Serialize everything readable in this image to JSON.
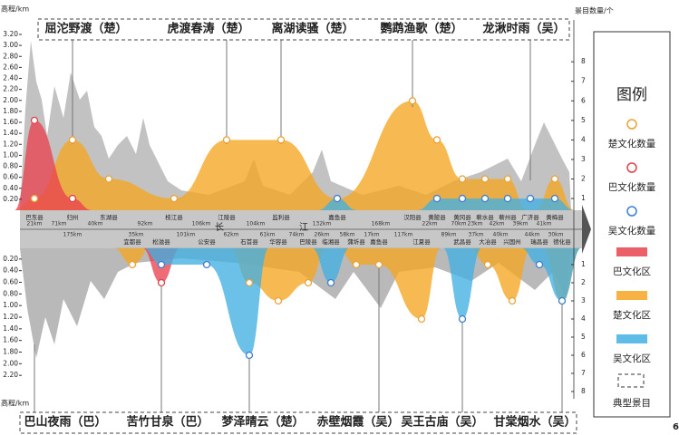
{
  "chart_data": {
    "type": "area",
    "y_label": "高程/km",
    "y2_label": "景目数量/个",
    "river_name": [
      "长",
      "江"
    ],
    "upper": {
      "ylim": [
        0,
        3.2
      ],
      "yticks": [
        {
          "value": 0.2,
          "label": "0.20"
        },
        {
          "value": 0.4,
          "label": "0.40"
        },
        {
          "value": 0.6,
          "label": "0.60"
        },
        {
          "value": 0.8,
          "label": "0.80"
        },
        {
          "value": 1.0,
          "label": "1.00"
        },
        {
          "value": 1.2,
          "label": "1.20"
        },
        {
          "value": 1.4,
          "label": "1.40"
        },
        {
          "value": 1.6,
          "label": "1.60"
        },
        {
          "value": 1.8,
          "label": "1.80"
        },
        {
          "value": 2.0,
          "label": "2.00"
        },
        {
          "value": 2.2,
          "label": "2.20"
        },
        {
          "value": 2.4,
          "label": "2.40"
        },
        {
          "value": 2.6,
          "label": "2.60"
        },
        {
          "value": 2.8,
          "label": "2.80"
        },
        {
          "value": 3.0,
          "label": "3.00"
        },
        {
          "value": 3.2,
          "label": "3.20"
        }
      ],
      "y2lim": [
        0.4,
        9.4
      ],
      "y2ticks": [
        1,
        2,
        3,
        4,
        5,
        6,
        7,
        8
      ],
      "scenes": [
        "屈沱野渡（楚）",
        "虎渡春涛（楚）",
        "离湖读骚（楚）",
        "鹦鹉渔歌（楚）",
        "龙湫时雨（吴）"
      ],
      "categories": [
        "巴东县",
        "归州",
        "东湖县",
        "枝江县",
        "江陵县",
        "监利县",
        "嘉鱼县",
        "汉阳县",
        "黄陂县",
        "黄冈县",
        "蕲水县",
        "蕲州县",
        "广济县",
        "黄梅县"
      ],
      "distances": [
        "21km",
        "71km",
        "40km",
        "92km",
        "106km",
        "104km",
        "132km",
        "168km",
        "22km",
        "70km",
        "23km",
        "42km",
        "39km",
        "41km"
      ],
      "series": [
        {
          "name": "楚文化数量",
          "color": "#e9a237",
          "fill": "#f5a623",
          "values": [
            1,
            4,
            2,
            1,
            4,
            4,
            1,
            6,
            4,
            2,
            2,
            2,
            null,
            2
          ]
        },
        {
          "name": "巴文化数量",
          "color": "#e0404a",
          "fill": "#e8434f",
          "values": [
            5,
            1,
            null,
            null,
            null,
            null,
            null,
            null,
            null,
            null,
            null,
            null,
            null,
            null
          ]
        },
        {
          "name": "吴文化数量",
          "color": "#3a7fd0",
          "fill": "#42b0e3",
          "values": [
            null,
            null,
            null,
            null,
            null,
            null,
            1,
            null,
            1,
            1,
            1,
            1,
            1,
            1
          ]
        }
      ]
    },
    "lower": {
      "ylim": [
        0,
        2.4
      ],
      "yticks": [
        {
          "value": 0.2,
          "label": "0.20"
        },
        {
          "value": 0.4,
          "label": "0.40"
        },
        {
          "value": 0.6,
          "label": "0.60"
        },
        {
          "value": 0.8,
          "label": "0.80"
        },
        {
          "value": 1.0,
          "label": "1.00"
        },
        {
          "value": 1.2,
          "label": "1.20"
        },
        {
          "value": 1.4,
          "label": "1.40"
        },
        {
          "value": 1.6,
          "label": "1.60"
        },
        {
          "value": 1.8,
          "label": "1.80"
        },
        {
          "value": 2.0,
          "label": "2.00"
        },
        {
          "value": 2.2,
          "label": "2.20"
        }
      ],
      "y2lim": [
        0,
        8
      ],
      "y2ticks": [
        1,
        2,
        3,
        4,
        5,
        6,
        7,
        8
      ],
      "scenes": [
        "巴山夜雨（巴）",
        "苦竹甘泉（巴）",
        "梦泽晴云（楚）",
        "赤壁烟霞（吴）",
        "吴王古庙（吴）",
        "甘棠烟水（吴）"
      ],
      "categories": [
        "宜都县",
        "松滋县",
        "公安县",
        "石首县",
        "华容县",
        "巴陵县",
        "临湘县",
        "蒲圻县",
        "嘉鱼县",
        "江夏县",
        "武昌县",
        "大冶县",
        "兴国州",
        "瑞昌县",
        "德化县"
      ],
      "distances": [
        "175km",
        "35km",
        "101km",
        "62km",
        "61km",
        "74km",
        "26km",
        "58km",
        "17km",
        "117km",
        "89km",
        "37km",
        "40km",
        "44km",
        "30km"
      ],
      "series": [
        {
          "name": "楚文化数量",
          "color": "#e9a237",
          "fill": "#f5a623",
          "values": [
            1,
            null,
            null,
            2,
            3,
            2,
            null,
            1,
            1,
            4,
            null,
            1,
            3,
            null,
            3
          ]
        },
        {
          "name": "巴文化数量",
          "color": "#e0404a",
          "fill": "#e8434f",
          "values": [
            null,
            2,
            null,
            null,
            null,
            null,
            null,
            null,
            null,
            null,
            null,
            null,
            null,
            null,
            null
          ]
        },
        {
          "name": "吴文化数量",
          "color": "#3a7fd0",
          "fill": "#42b0e3",
          "values": [
            null,
            1,
            1,
            6,
            null,
            null,
            2,
            null,
            null,
            null,
            4,
            null,
            null,
            1,
            3
          ]
        }
      ]
    },
    "legend": {
      "title": "图例",
      "markers": [
        {
          "name": "楚文化数量",
          "color": "#e9a237"
        },
        {
          "name": "巴文化数量",
          "color": "#e0404a"
        },
        {
          "name": "吴文化数量",
          "color": "#3a7fd0"
        }
      ],
      "areas": [
        {
          "name": "巴文化区",
          "color": "#e8434f"
        },
        {
          "name": "楚文化区",
          "color": "#f5a623"
        },
        {
          "name": "吴文化区",
          "color": "#42b0e3"
        }
      ],
      "typical": "典型景目"
    },
    "page_number": "6"
  }
}
